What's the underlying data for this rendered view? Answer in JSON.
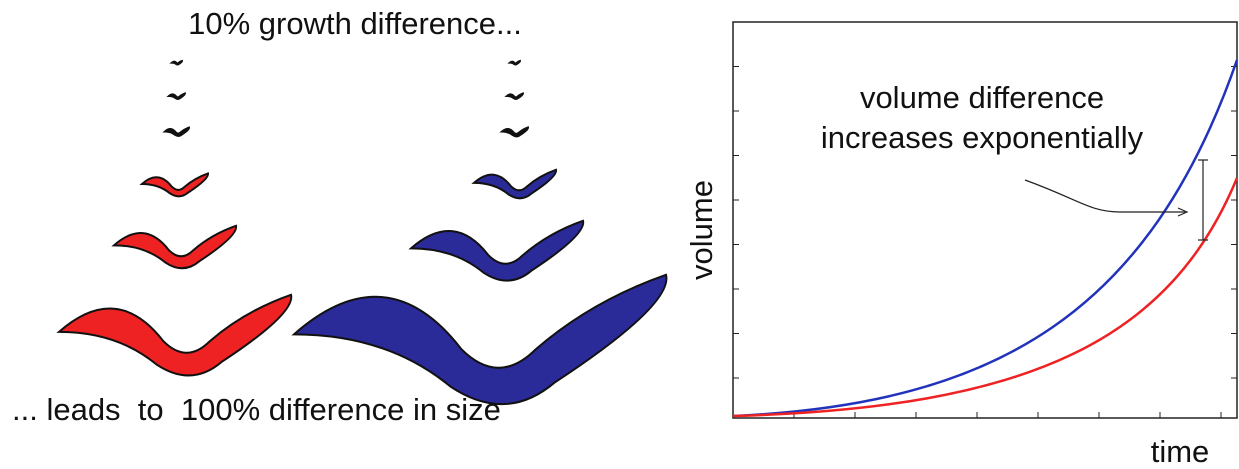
{
  "header": {
    "title": "10% growth difference..."
  },
  "footer": {
    "caption": "... leads  to  100% difference in size"
  },
  "plot": {
    "y_label": "volume",
    "x_label": "time",
    "annotation": [
      "volume difference",
      "increases exponentially"
    ]
  }
}
